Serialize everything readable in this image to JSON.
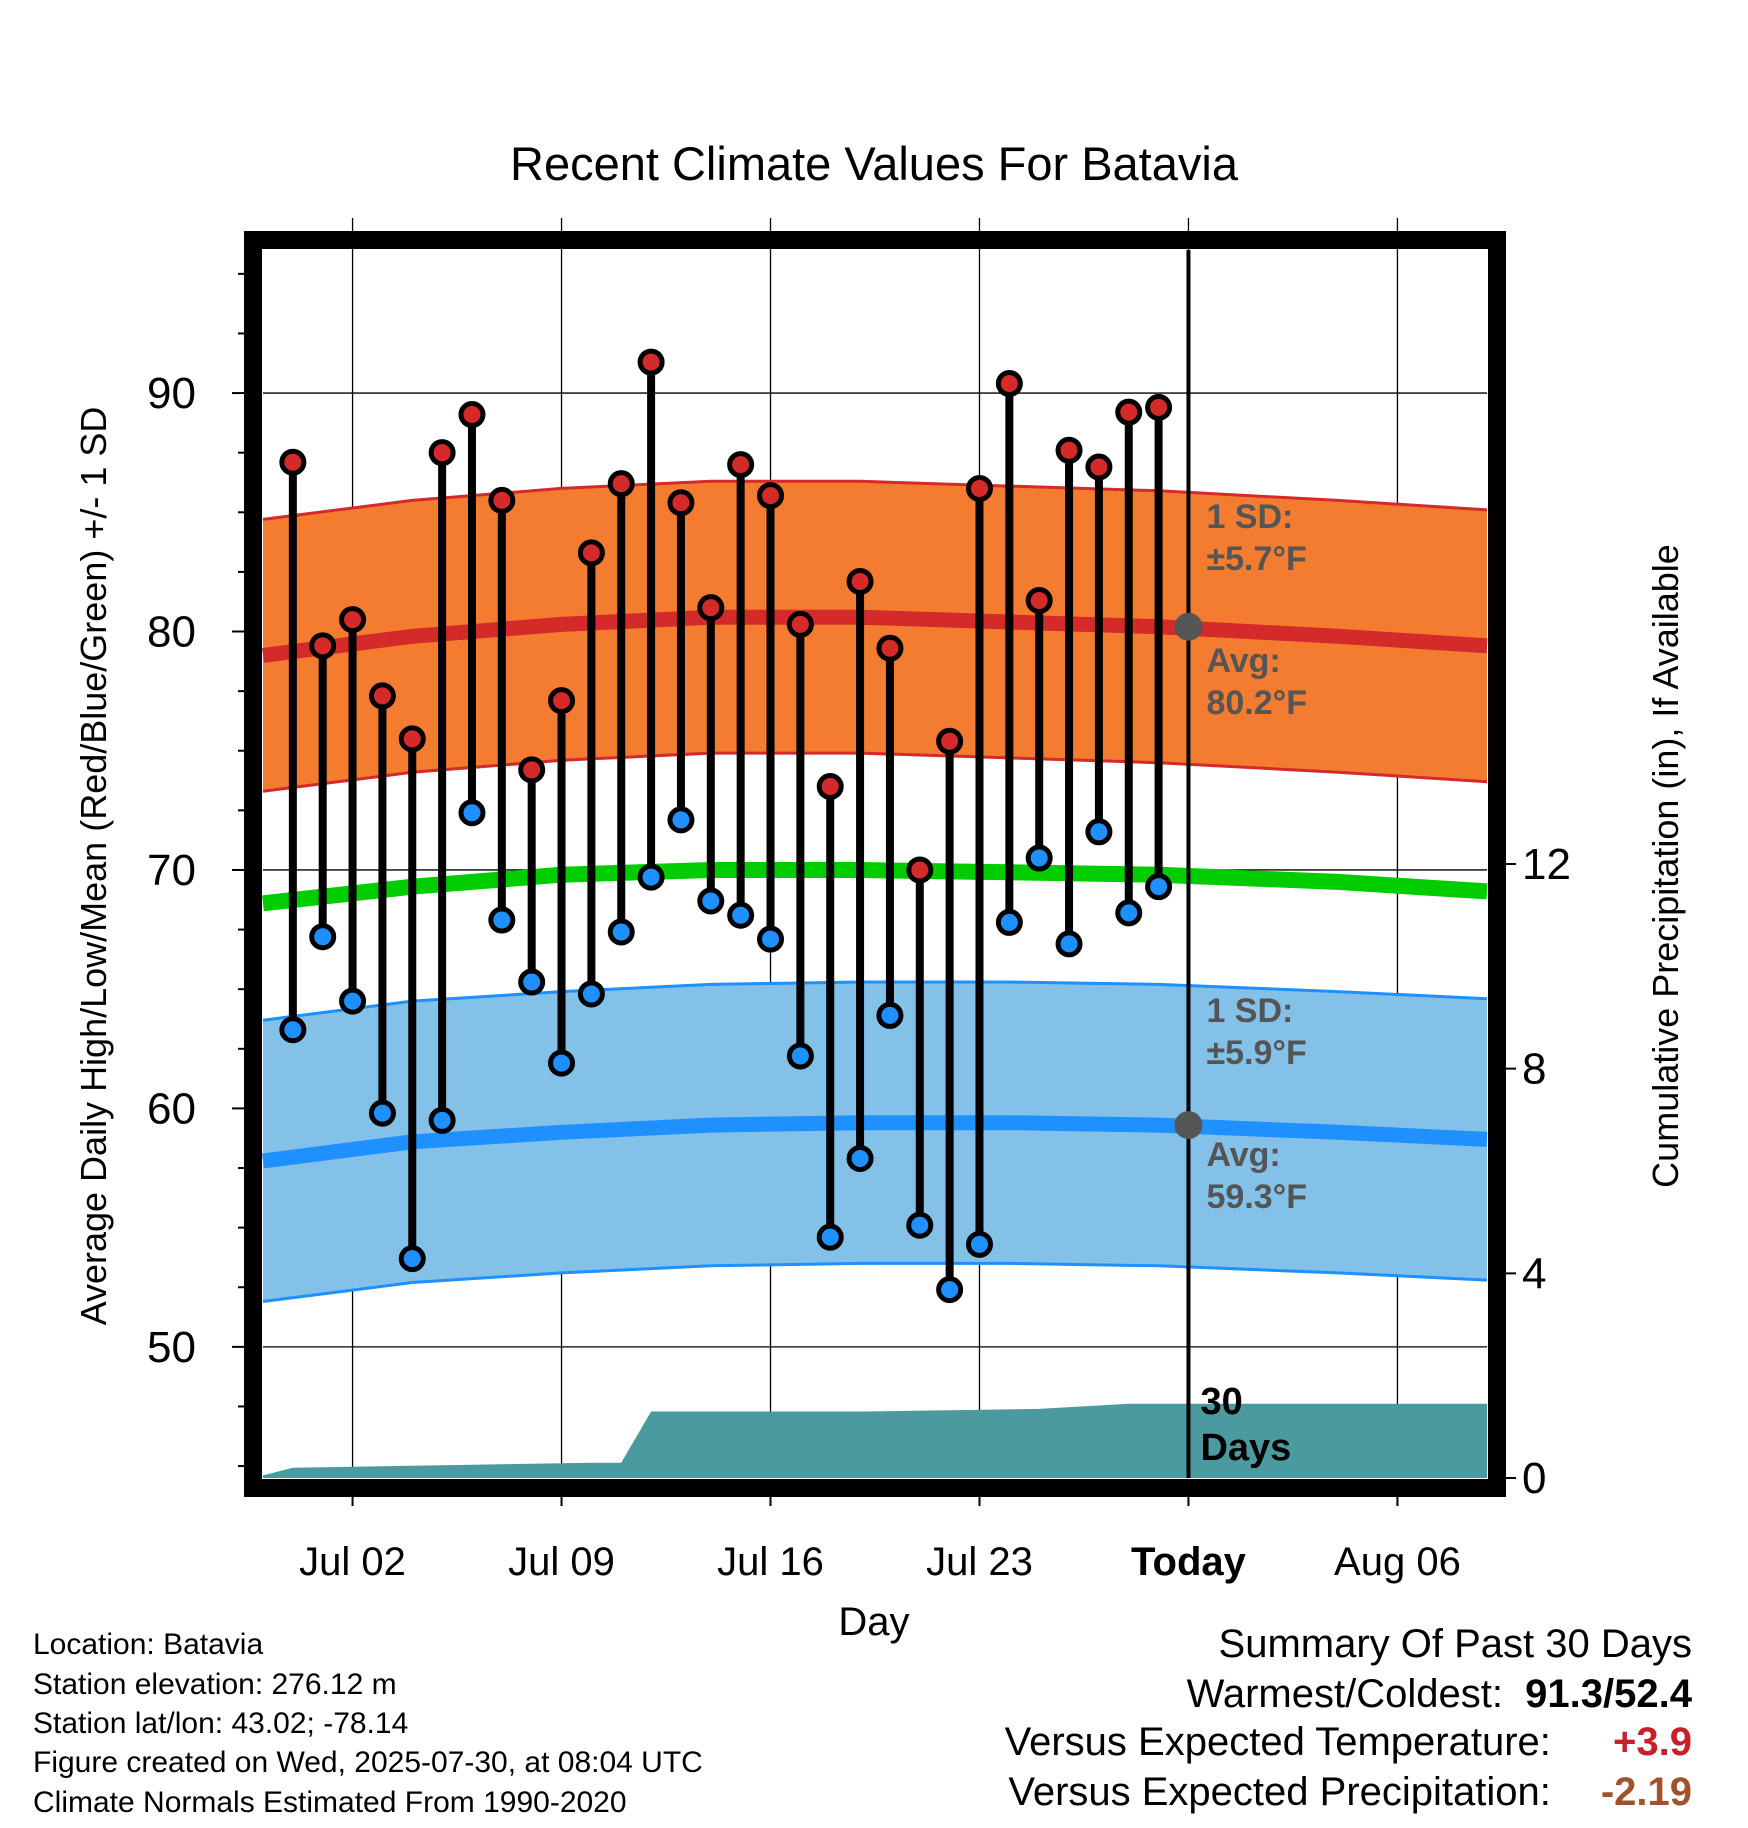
{
  "chart_data": {
    "type": "line",
    "title": "Recent Climate Values For Batavia",
    "xlabel": "Day",
    "ylabel": "Average Daily High/Low/Mean (Red/Blue/Green) +/- 1 SD",
    "y2label": "Cumulative Precipitation (in), If Available",
    "ylim": [
      44.5,
      96
    ],
    "y2lim": [
      0,
      24
    ],
    "x_tick_labels": [
      "Jul 02",
      "Jul 09",
      "Jul 16",
      "Jul 23",
      "Today",
      "Aug 06"
    ],
    "y_ticks": [
      50,
      60,
      70,
      80,
      90
    ],
    "y2_ticks": [
      0,
      4,
      8,
      12
    ],
    "grid": true,
    "x_range": [
      "2025-06-29",
      "2025-08-09"
    ],
    "today": "2025-07-30",
    "daily": {
      "dates": [
        "2025-06-30",
        "2025-07-01",
        "2025-07-02",
        "2025-07-03",
        "2025-07-04",
        "2025-07-05",
        "2025-07-06",
        "2025-07-07",
        "2025-07-08",
        "2025-07-09",
        "2025-07-10",
        "2025-07-11",
        "2025-07-12",
        "2025-07-13",
        "2025-07-14",
        "2025-07-15",
        "2025-07-16",
        "2025-07-17",
        "2025-07-18",
        "2025-07-19",
        "2025-07-20",
        "2025-07-21",
        "2025-07-22",
        "2025-07-23",
        "2025-07-24",
        "2025-07-25",
        "2025-07-26",
        "2025-07-27",
        "2025-07-28",
        "2025-07-29"
      ],
      "high": [
        87.1,
        79.4,
        80.5,
        77.3,
        75.5,
        87.5,
        89.1,
        85.5,
        74.2,
        77.1,
        83.3,
        86.2,
        91.3,
        85.4,
        81.0,
        87.0,
        85.7,
        80.3,
        73.5,
        82.1,
        79.3,
        70.0,
        75.4,
        86.0,
        90.4,
        81.3,
        87.6,
        86.9,
        89.2,
        89.4
      ],
      "low": [
        63.3,
        67.2,
        64.5,
        59.8,
        53.7,
        59.5,
        72.4,
        67.9,
        65.3,
        61.9,
        64.8,
        67.4,
        69.7,
        72.1,
        68.7,
        68.1,
        67.1,
        62.2,
        54.6,
        57.9,
        63.9,
        55.1,
        52.4,
        54.3,
        67.8,
        70.5,
        66.9,
        71.6,
        68.2,
        69.3
      ],
      "high_color": "#d42a2a",
      "low_color": "#1e90ff"
    },
    "normals": {
      "dates": [
        "2025-06-29",
        "2025-07-04",
        "2025-07-09",
        "2025-07-14",
        "2025-07-19",
        "2025-07-24",
        "2025-07-29",
        "2025-08-04",
        "2025-08-09"
      ],
      "high_avg": [
        79.0,
        79.8,
        80.3,
        80.6,
        80.6,
        80.4,
        80.2,
        79.8,
        79.4
      ],
      "high_sd": 5.7,
      "mean_avg": [
        68.6,
        69.3,
        69.8,
        70.0,
        70.0,
        69.9,
        69.8,
        69.5,
        69.1
      ],
      "low_avg": [
        57.8,
        58.6,
        59.0,
        59.3,
        59.4,
        59.4,
        59.3,
        59.0,
        58.7
      ],
      "low_sd": 5.9,
      "high_band_color": "#f47c30",
      "high_line_color": "#d42a2a",
      "low_band_color": "#83c1e8",
      "low_line_color": "#1e90ff",
      "mean_line_color": "#00cc00"
    },
    "precip": {
      "dates": [
        "2025-06-29",
        "2025-06-30",
        "2025-07-10",
        "2025-07-11",
        "2025-07-12",
        "2025-07-19",
        "2025-07-25",
        "2025-07-28",
        "2025-08-09"
      ],
      "cumulative": [
        0.05,
        0.2,
        0.3,
        0.3,
        1.3,
        1.3,
        1.35,
        1.45,
        1.45
      ],
      "color": "#4a9aa0"
    },
    "annotations": {
      "high_sd_label": "1 SD:",
      "high_sd_value": "±5.7°F",
      "high_avg_label": "Avg:",
      "high_avg_value": "80.2°F",
      "low_sd_label": "1 SD:",
      "low_sd_value": "±5.9°F",
      "low_avg_label": "Avg:",
      "low_avg_value": "59.3°F",
      "days_label_1": "30",
      "days_label_2": "Days",
      "text_color": "#555555"
    }
  },
  "info": {
    "location": "Location: Batavia",
    "elevation": "Station elevation: 276.12 m",
    "latlon": "Station lat/lon: 43.02; -78.14",
    "created": "Figure created on Wed, 2025-07-30, at 08:04 UTC",
    "normals": "Climate Normals Estimated From 1990-2020"
  },
  "summary": {
    "title": "Summary Of Past 30 Days",
    "warm_cold_label": "Warmest/Coldest:",
    "warm_cold_value": "91.3/52.4",
    "temp_label": "Versus Expected Temperature:",
    "temp_value": "+3.9",
    "precip_label": "Versus Expected Precipitation:",
    "precip_value": "-2.19"
  }
}
